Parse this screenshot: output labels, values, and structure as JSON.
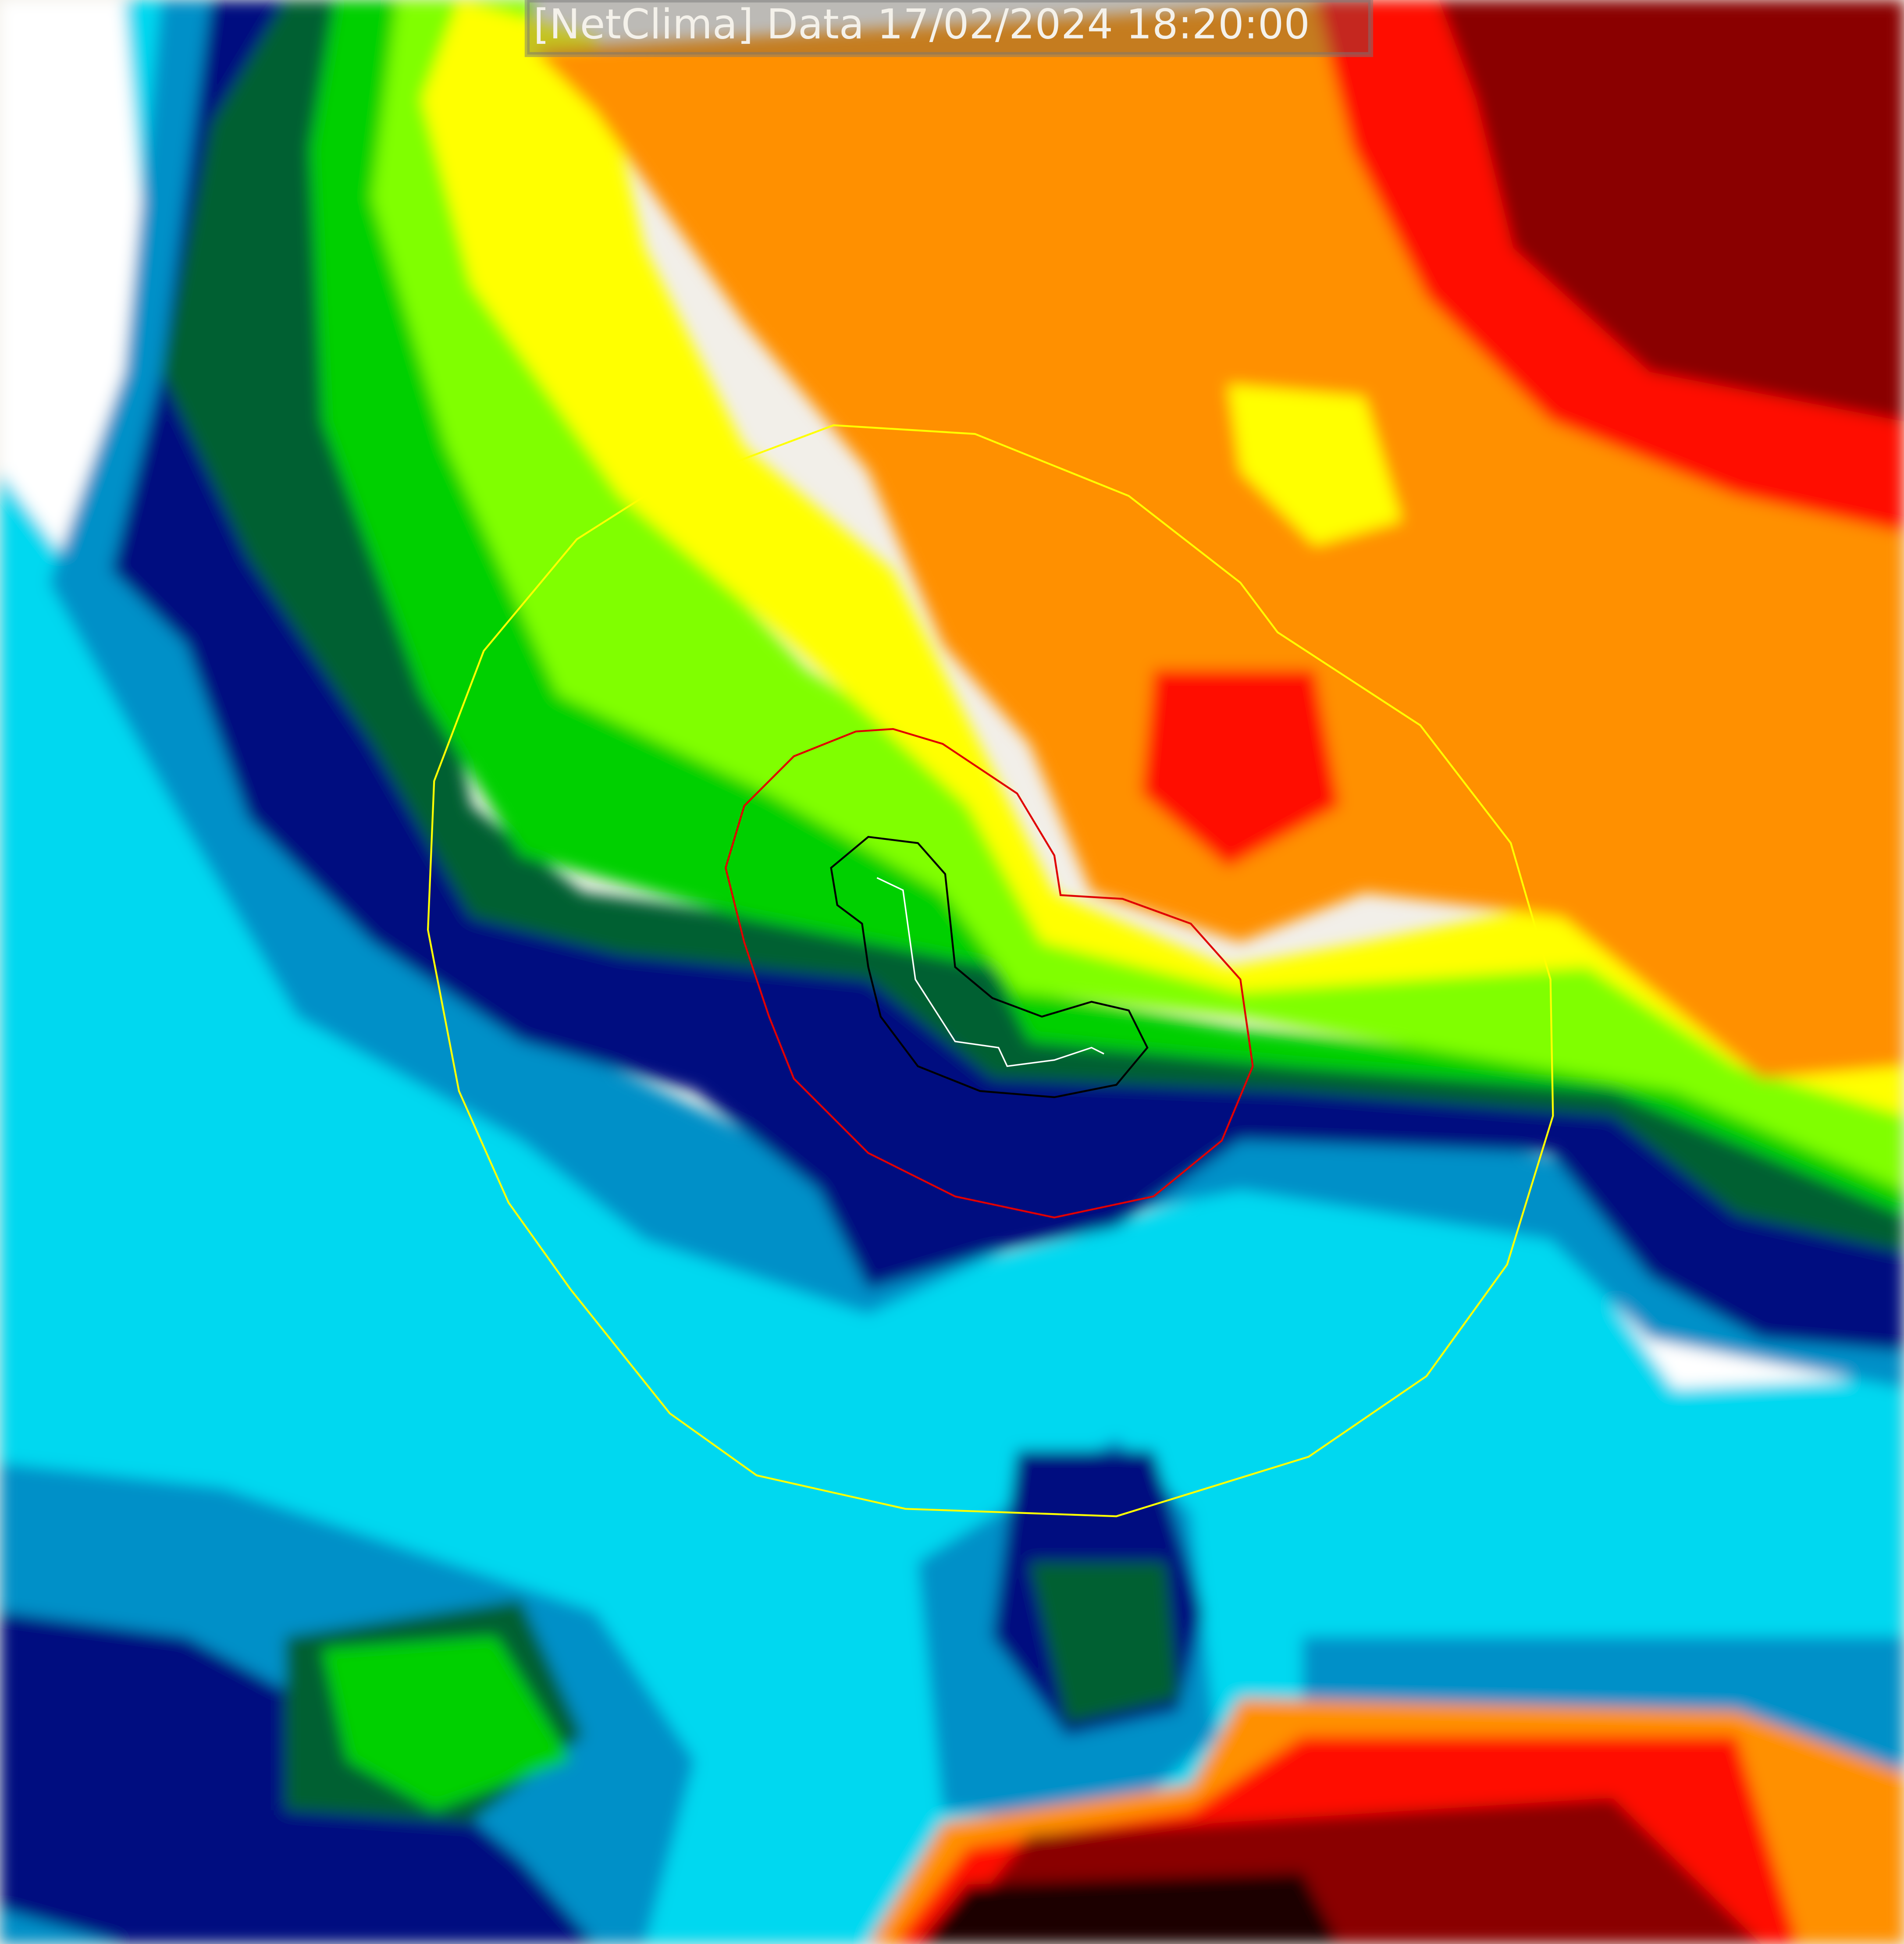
{
  "header": {
    "title": "[NetClima] Data 17/02/2024 18:20:00"
  },
  "legend_colors": {
    "map_background": "#f2efe9",
    "no_echo": "#ffffff",
    "cyan": "#00d8f0",
    "light_blue": "#0090c8",
    "navy": "#000a80",
    "dark_green": "#006030",
    "green": "#00d000",
    "lime": "#80ff00",
    "yellow": "#ffff00",
    "orange": "#ff9000",
    "red": "#ff1000",
    "dark_red": "#8a0000"
  },
  "overlays": {
    "outer_ring_color": "#ffff00",
    "middle_contour_color": "#e00000",
    "inner_contour_color": "#000000",
    "track_color": "#ffffff"
  }
}
